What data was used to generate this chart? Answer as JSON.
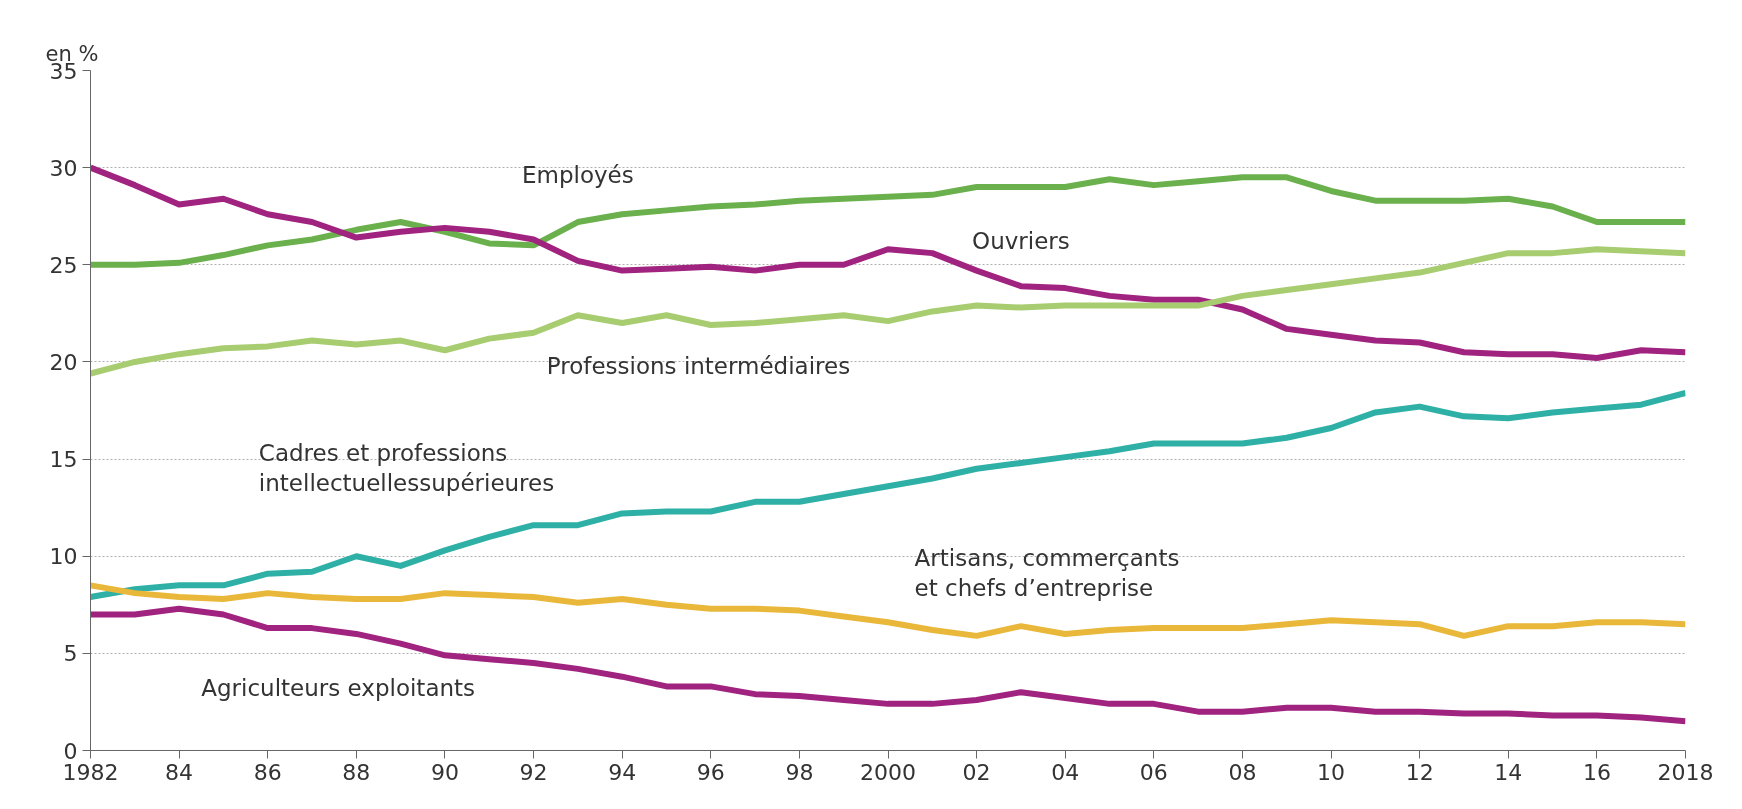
{
  "chart_data": {
    "type": "line",
    "ylabel": "en %",
    "x": [
      1982,
      1983,
      1984,
      1985,
      1986,
      1987,
      1988,
      1989,
      1990,
      1991,
      1992,
      1993,
      1994,
      1995,
      1996,
      1997,
      1998,
      1999,
      2000,
      2001,
      2002,
      2003,
      2004,
      2005,
      2006,
      2007,
      2008,
      2009,
      2010,
      2011,
      2012,
      2013,
      2014,
      2015,
      2016,
      2017,
      2018
    ],
    "series": [
      {
        "name": "Employés",
        "color": "#6ab04c",
        "values": [
          25.0,
          25.0,
          25.1,
          25.5,
          26.0,
          26.3,
          26.8,
          27.2,
          26.7,
          26.1,
          26.0,
          27.2,
          27.6,
          27.8,
          28.0,
          28.1,
          28.3,
          28.4,
          28.5,
          28.6,
          29.0,
          29.0,
          29.0,
          29.4,
          29.1,
          29.3,
          29.5,
          29.5,
          28.8,
          28.3,
          28.3,
          28.3,
          28.4,
          28.0,
          27.2,
          27.2,
          27.2
        ]
      },
      {
        "name": "Ouvriers",
        "color": "#a0237f",
        "values": [
          30.0,
          29.1,
          28.1,
          28.4,
          27.6,
          27.2,
          26.4,
          26.7,
          26.9,
          26.7,
          26.3,
          25.2,
          24.7,
          24.8,
          24.9,
          24.7,
          25.0,
          25.0,
          25.8,
          25.6,
          24.7,
          23.9,
          23.8,
          23.4,
          23.2,
          23.2,
          22.7,
          21.7,
          21.4,
          21.1,
          21.0,
          20.5,
          20.4,
          20.4,
          20.2,
          20.6,
          20.5
        ]
      },
      {
        "name": "Professions intermédiaires",
        "color": "#a8cc70",
        "values": [
          19.4,
          20.0,
          20.4,
          20.7,
          20.8,
          21.1,
          20.9,
          21.1,
          20.6,
          21.2,
          21.5,
          22.4,
          22.0,
          22.4,
          21.9,
          22.0,
          22.2,
          22.4,
          22.1,
          22.6,
          22.9,
          22.8,
          22.9,
          22.9,
          22.9,
          22.9,
          23.4,
          23.7,
          24.0,
          24.3,
          24.6,
          25.1,
          25.6,
          25.6,
          25.8,
          25.7,
          25.6
        ]
      },
      {
        "name": "Cadres et professions\nintellectuellessupérieures",
        "color": "#2fb0a6",
        "values": [
          7.9,
          8.3,
          8.5,
          8.5,
          9.1,
          9.2,
          10.0,
          9.5,
          10.3,
          11.0,
          11.6,
          11.6,
          12.2,
          12.3,
          12.3,
          12.8,
          12.8,
          13.2,
          13.6,
          14.0,
          14.5,
          14.8,
          15.1,
          15.4,
          15.8,
          15.8,
          15.8,
          16.1,
          16.6,
          17.4,
          17.7,
          17.2,
          17.1,
          17.4,
          17.6,
          17.8,
          18.4
        ]
      },
      {
        "name": "Artisans, commerçants\net chefs d’entreprise",
        "color": "#e9b83a",
        "values": [
          8.5,
          8.1,
          7.9,
          7.8,
          8.1,
          7.9,
          7.8,
          7.8,
          8.1,
          8.0,
          7.9,
          7.6,
          7.8,
          7.5,
          7.3,
          7.3,
          7.2,
          6.9,
          6.6,
          6.2,
          5.9,
          6.4,
          6.0,
          6.2,
          6.3,
          6.3,
          6.3,
          6.5,
          6.7,
          6.6,
          6.5,
          5.9,
          6.4,
          6.4,
          6.6,
          6.6,
          6.5
        ]
      },
      {
        "name": "Agriculteurs exploitants",
        "color": "#a0237f",
        "values": [
          7.0,
          7.0,
          7.3,
          7.0,
          6.3,
          6.3,
          6.0,
          5.5,
          4.9,
          4.7,
          4.5,
          4.2,
          3.8,
          3.3,
          3.3,
          2.9,
          2.8,
          2.6,
          2.4,
          2.4,
          2.6,
          3.0,
          2.7,
          2.4,
          2.4,
          2.0,
          2.0,
          2.2,
          2.2,
          2.0,
          2.0,
          1.9,
          1.9,
          1.8,
          1.8,
          1.7,
          1.5
        ]
      }
    ],
    "xlim": [
      1982,
      2018
    ],
    "ylim": [
      0,
      35
    ],
    "xticks": [
      {
        "value": 1982,
        "label": "1982"
      },
      {
        "value": 1984,
        "label": "84"
      },
      {
        "value": 1986,
        "label": "86"
      },
      {
        "value": 1988,
        "label": "88"
      },
      {
        "value": 1990,
        "label": "90"
      },
      {
        "value": 1992,
        "label": "92"
      },
      {
        "value": 1994,
        "label": "94"
      },
      {
        "value": 1996,
        "label": "96"
      },
      {
        "value": 1998,
        "label": "98"
      },
      {
        "value": 2000,
        "label": "2000"
      },
      {
        "value": 2002,
        "label": "02"
      },
      {
        "value": 2004,
        "label": "04"
      },
      {
        "value": 2006,
        "label": "06"
      },
      {
        "value": 2008,
        "label": "08"
      },
      {
        "value": 2010,
        "label": "10"
      },
      {
        "value": 2012,
        "label": "12"
      },
      {
        "value": 2014,
        "label": "14"
      },
      {
        "value": 2016,
        "label": "16"
      },
      {
        "value": 2018,
        "label": "2018"
      }
    ],
    "yticks": [
      0,
      5,
      10,
      15,
      20,
      25,
      30,
      35
    ],
    "grid": "y",
    "legend": false,
    "marker": "none",
    "line_style": "solid"
  }
}
